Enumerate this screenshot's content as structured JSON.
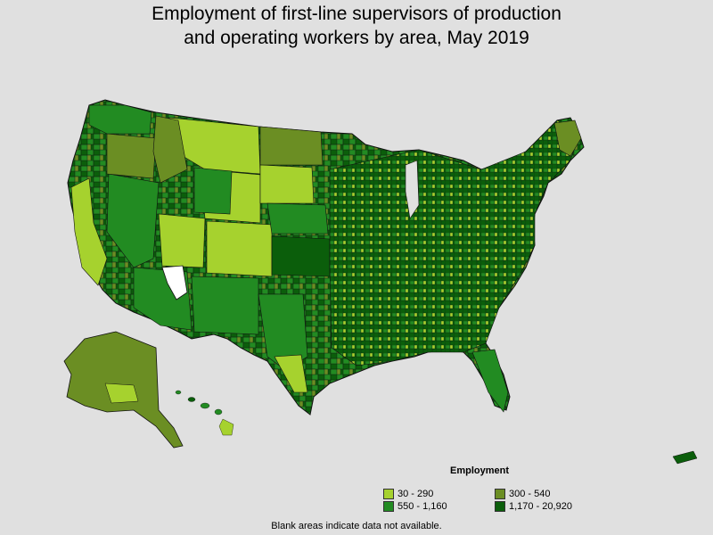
{
  "title_line1": "Employment of first-line supervisors of production",
  "title_line2": "and operating workers by area, May 2019",
  "legend": {
    "title": "Employment",
    "items": [
      {
        "label": "30 - 290",
        "color": "#a6d22e"
      },
      {
        "label": "300 - 540",
        "color": "#6b8e23"
      },
      {
        "label": "550 - 1,160",
        "color": "#228b22"
      },
      {
        "label": "1,170 - 20,920",
        "color": "#0b5e0b"
      }
    ]
  },
  "footnote": "Blank areas indicate data not available.",
  "colors": {
    "background": "#e0e0e0",
    "light": "#a6d22e",
    "olive": "#6b8e23",
    "mid": "#228b22",
    "dark": "#0b5e0b",
    "blank": "#ffffff",
    "border": "#1a1a1a"
  }
}
